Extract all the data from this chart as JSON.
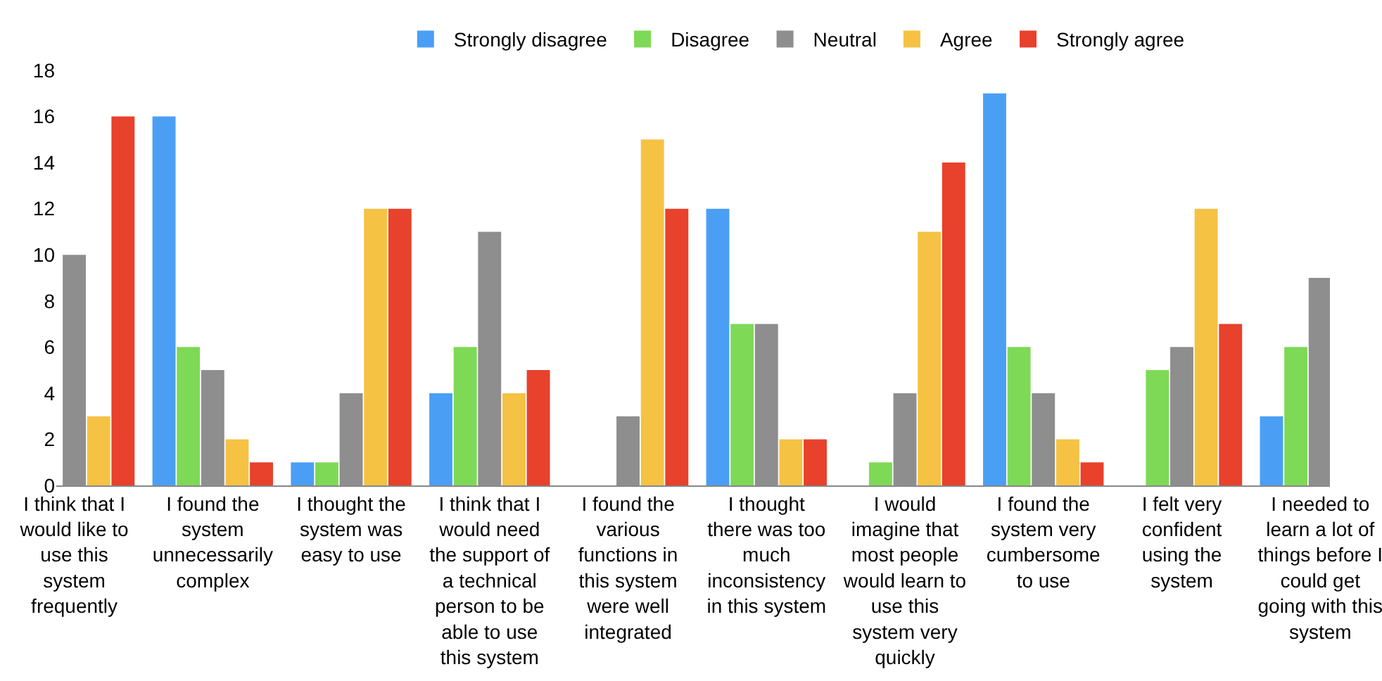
{
  "chart_data": {
    "type": "bar",
    "categories": [
      "I think that I would like to use this system frequently",
      "I found the system unnecessarily complex",
      "I thought the system was easy to use",
      "I think that I would need the support of a technical person to be able to use this system",
      "I found the various functions in this system were well integrated",
      "I thought there was too much inconsistency in this system",
      "I would imagine that most people would learn to use this system very quickly",
      "I found the system very cumbersome to use",
      "I felt very confident using the system",
      "I needed to learn a lot of things before I could get going with this system"
    ],
    "series": [
      {
        "name": "Strongly disagree",
        "color": "#4a9ff5",
        "values": [
          null,
          16,
          1,
          4,
          0,
          12,
          0,
          17,
          0,
          3
        ]
      },
      {
        "name": "Disagree",
        "color": "#7ed957",
        "values": [
          null,
          6,
          1,
          6,
          0,
          7,
          1,
          6,
          5,
          6
        ]
      },
      {
        "name": "Neutral",
        "color": "#8e8e8e",
        "values": [
          10,
          5,
          4,
          11,
          3,
          7,
          4,
          4,
          6,
          9
        ]
      },
      {
        "name": "Agree",
        "color": "#f5c244",
        "values": [
          3,
          2,
          12,
          4,
          15,
          2,
          11,
          2,
          12,
          null
        ]
      },
      {
        "name": "Strongly agree",
        "color": "#e8412c",
        "values": [
          16,
          1,
          12,
          5,
          12,
          2,
          14,
          1,
          7,
          null
        ]
      }
    ],
    "ylim": [
      0,
      18
    ],
    "yticks": [
      0,
      2,
      4,
      6,
      8,
      10,
      12,
      14,
      16,
      18
    ],
    "legend": "top"
  }
}
